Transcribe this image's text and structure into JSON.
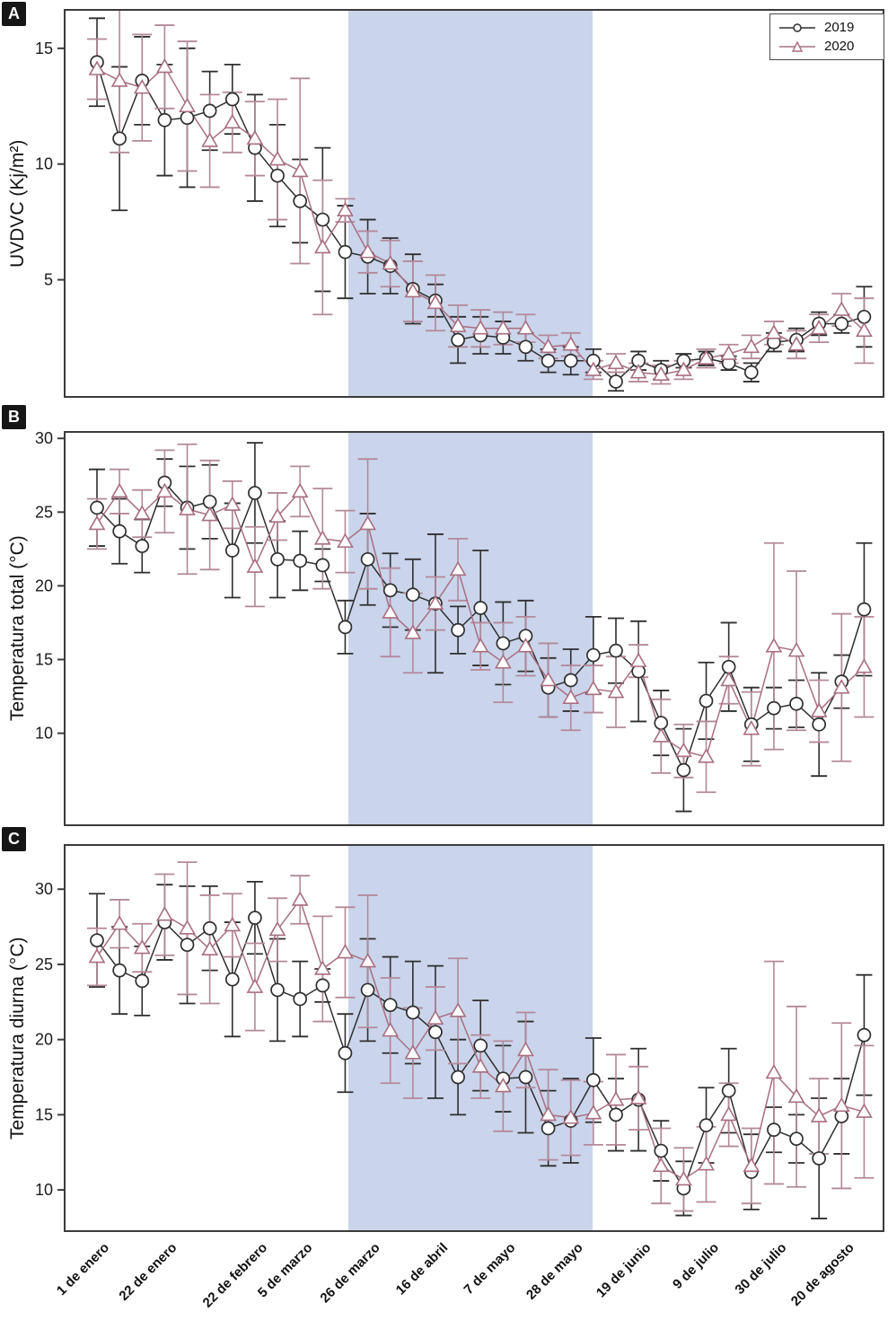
{
  "figure": {
    "panel_labels": [
      "A",
      "B",
      "C"
    ],
    "background": "#ffffff",
    "border_color": "#3b3b3b"
  },
  "legend": {
    "position": "top-right",
    "entries": [
      {
        "label": "2019",
        "marker": "circle",
        "color": "#2e2e2e"
      },
      {
        "label": "2020",
        "marker": "triangle",
        "color": "#a96e80"
      }
    ]
  },
  "shaded_region": {
    "color": "#cad5eb",
    "from_point": 12.15,
    "to_point": 22.97,
    "note": "vertical band spanning all three panels, approx 26 de marzo - 11 de junio"
  },
  "x_axis": {
    "n_points": 35,
    "ticks": [
      {
        "label": "1 de enero",
        "point": 1
      },
      {
        "label": "22 de enero",
        "point": 4
      },
      {
        "label": "22 de febrero",
        "point": 8
      },
      {
        "label": "5 de marzo",
        "point": 10
      },
      {
        "label": "26 de marzo",
        "point": 13
      },
      {
        "label": "16 de abril",
        "point": 16
      },
      {
        "label": "7 de mayo",
        "point": 19
      },
      {
        "label": "28 de mayo",
        "point": 22
      },
      {
        "label": "19 de junio",
        "point": 25
      },
      {
        "label": "9 de julio",
        "point": 28
      },
      {
        "label": "30 de julio",
        "point": 31
      },
      {
        "label": "20 de agosto",
        "point": 34
      }
    ]
  },
  "chart_data": [
    {
      "panel": "A",
      "type": "line",
      "ylabel": "UVDVC (Kj/m²)",
      "yticks": [
        5,
        10,
        15
      ],
      "ylim": [
        -0.1,
        16.7
      ],
      "grid": false,
      "series": [
        {
          "name": "2019",
          "marker": "circle",
          "color": "#2e2e2e",
          "values": [
            14.4,
            11.1,
            13.6,
            11.9,
            12.0,
            12.3,
            12.8,
            10.7,
            9.5,
            8.4,
            7.6,
            6.2,
            6.0,
            5.6,
            4.6,
            4.1,
            2.4,
            2.6,
            2.5,
            2.1,
            1.5,
            1.5,
            1.5,
            0.6,
            1.5,
            1.1,
            1.5,
            1.6,
            1.4,
            1.0,
            2.3,
            2.4,
            3.1,
            3.1,
            3.4
          ],
          "err": [
            1.9,
            3.1,
            1.9,
            2.4,
            3.0,
            1.7,
            1.5,
            2.3,
            2.2,
            1.8,
            3.1,
            2.0,
            1.6,
            1.2,
            1.5,
            0.7,
            1.0,
            0.8,
            0.7,
            0.6,
            0.5,
            0.6,
            0.5,
            0.4,
            0.4,
            0.4,
            0.3,
            0.3,
            0.3,
            0.4,
            0.4,
            0.5,
            0.5,
            0.4,
            1.3
          ]
        },
        {
          "name": "2020",
          "marker": "triangle",
          "color": "#a96e80",
          "values": [
            14.1,
            13.6,
            13.3,
            14.2,
            12.5,
            11.0,
            11.8,
            11.1,
            10.2,
            9.7,
            6.4,
            8.0,
            6.2,
            5.7,
            4.5,
            4.0,
            3.0,
            2.9,
            2.9,
            2.9,
            2.1,
            2.2,
            1.1,
            1.4,
            1.0,
            0.9,
            1.1,
            1.6,
            1.8,
            2.1,
            2.7,
            2.2,
            2.9,
            3.7,
            2.8
          ],
          "err": [
            1.3,
            3.1,
            2.3,
            1.8,
            2.8,
            2.0,
            1.3,
            1.6,
            2.6,
            4.0,
            2.9,
            0.5,
            0.9,
            1.0,
            1.3,
            1.2,
            0.9,
            0.8,
            0.7,
            0.6,
            0.5,
            0.5,
            0.4,
            0.4,
            0.4,
            0.4,
            0.4,
            0.4,
            0.4,
            0.5,
            0.5,
            0.6,
            0.6,
            0.7,
            1.4
          ]
        }
      ]
    },
    {
      "panel": "B",
      "type": "line",
      "ylabel": "Temperatura total (°C)",
      "yticks": [
        10,
        15,
        20,
        25,
        30
      ],
      "ylim": [
        3.7,
        30.5
      ],
      "grid": false,
      "series": [
        {
          "name": "2019",
          "marker": "circle",
          "color": "#2e2e2e",
          "values": [
            25.3,
            23.7,
            22.7,
            27.0,
            25.3,
            25.7,
            22.4,
            26.3,
            21.8,
            21.7,
            21.4,
            17.2,
            21.8,
            19.7,
            19.4,
            18.8,
            17.0,
            18.5,
            16.1,
            16.6,
            13.1,
            13.6,
            15.3,
            15.6,
            14.2,
            10.7,
            7.5,
            12.2,
            14.5,
            10.6,
            11.7,
            12.0,
            10.6,
            13.5,
            18.4
          ],
          "err": [
            2.6,
            2.2,
            1.8,
            1.6,
            2.8,
            2.5,
            3.2,
            3.4,
            2.6,
            2.0,
            1.1,
            1.8,
            3.1,
            2.5,
            2.4,
            4.7,
            1.6,
            3.9,
            2.8,
            2.4,
            2.0,
            2.1,
            2.6,
            2.2,
            3.4,
            2.2,
            2.8,
            2.6,
            3.0,
            2.5,
            1.4,
            1.6,
            3.5,
            1.8,
            4.5
          ]
        },
        {
          "name": "2020",
          "marker": "triangle",
          "color": "#a96e80",
          "values": [
            24.2,
            26.4,
            24.9,
            26.4,
            25.2,
            24.8,
            25.5,
            21.3,
            24.7,
            26.4,
            23.2,
            23.0,
            24.2,
            18.2,
            16.8,
            18.8,
            21.1,
            15.9,
            14.8,
            15.9,
            13.6,
            12.4,
            13.0,
            12.8,
            14.9,
            9.8,
            8.8,
            8.4,
            13.6,
            10.3,
            15.9,
            15.6,
            11.5,
            13.1,
            14.5
          ],
          "err": [
            1.7,
            1.5,
            1.6,
            2.8,
            4.4,
            3.7,
            1.6,
            2.7,
            1.6,
            1.7,
            3.4,
            2.1,
            4.4,
            3.0,
            2.7,
            1.8,
            2.1,
            1.6,
            2.7,
            2.0,
            2.5,
            2.2,
            1.6,
            2.4,
            1.1,
            2.5,
            1.8,
            2.4,
            1.6,
            2.5,
            7.0,
            5.4,
            2.1,
            5.0,
            3.4
          ]
        }
      ]
    },
    {
      "panel": "C",
      "type": "line",
      "ylabel": "Temperatura diurna (°C)",
      "yticks": [
        10,
        15,
        20,
        25,
        30
      ],
      "ylim": [
        7.2,
        33.0
      ],
      "grid": false,
      "series": [
        {
          "name": "2019",
          "marker": "circle",
          "color": "#2e2e2e",
          "values": [
            26.6,
            24.6,
            23.9,
            27.8,
            26.3,
            27.4,
            24.0,
            28.1,
            23.3,
            22.7,
            23.6,
            19.1,
            23.3,
            22.3,
            21.8,
            20.5,
            17.5,
            19.6,
            17.4,
            17.5,
            14.1,
            14.6,
            17.3,
            15.0,
            16.0,
            12.6,
            10.1,
            14.3,
            16.6,
            11.2,
            14.0,
            13.4,
            12.1,
            14.9,
            20.3
          ],
          "err": [
            3.1,
            2.9,
            2.3,
            2.5,
            3.9,
            2.8,
            3.8,
            2.4,
            3.4,
            2.5,
            1.1,
            2.6,
            3.4,
            3.2,
            3.4,
            4.4,
            2.5,
            3.0,
            2.2,
            3.7,
            2.5,
            2.8,
            2.8,
            2.4,
            3.4,
            2.0,
            1.8,
            2.5,
            2.8,
            2.5,
            1.5,
            1.6,
            4.0,
            2.5,
            4.0
          ]
        },
        {
          "name": "2020",
          "marker": "triangle",
          "color": "#a96e80",
          "values": [
            25.5,
            27.7,
            26.1,
            28.3,
            27.4,
            26.0,
            27.6,
            23.5,
            27.3,
            29.3,
            24.7,
            25.8,
            25.2,
            20.6,
            19.1,
            21.4,
            21.9,
            18.2,
            16.9,
            19.3,
            15.0,
            14.8,
            15.1,
            16.0,
            16.1,
            11.6,
            10.7,
            11.7,
            15.0,
            11.6,
            17.8,
            16.2,
            14.9,
            15.6,
            15.2
          ],
          "err": [
            1.9,
            1.6,
            1.6,
            2.7,
            4.4,
            3.6,
            2.1,
            2.9,
            2.1,
            1.6,
            3.5,
            3.0,
            4.4,
            3.5,
            3.0,
            2.1,
            3.5,
            2.1,
            3.0,
            2.5,
            3.0,
            2.5,
            2.1,
            3.0,
            2.1,
            2.5,
            2.1,
            2.5,
            2.1,
            2.5,
            7.4,
            6.0,
            2.5,
            5.5,
            4.4
          ]
        }
      ]
    }
  ]
}
